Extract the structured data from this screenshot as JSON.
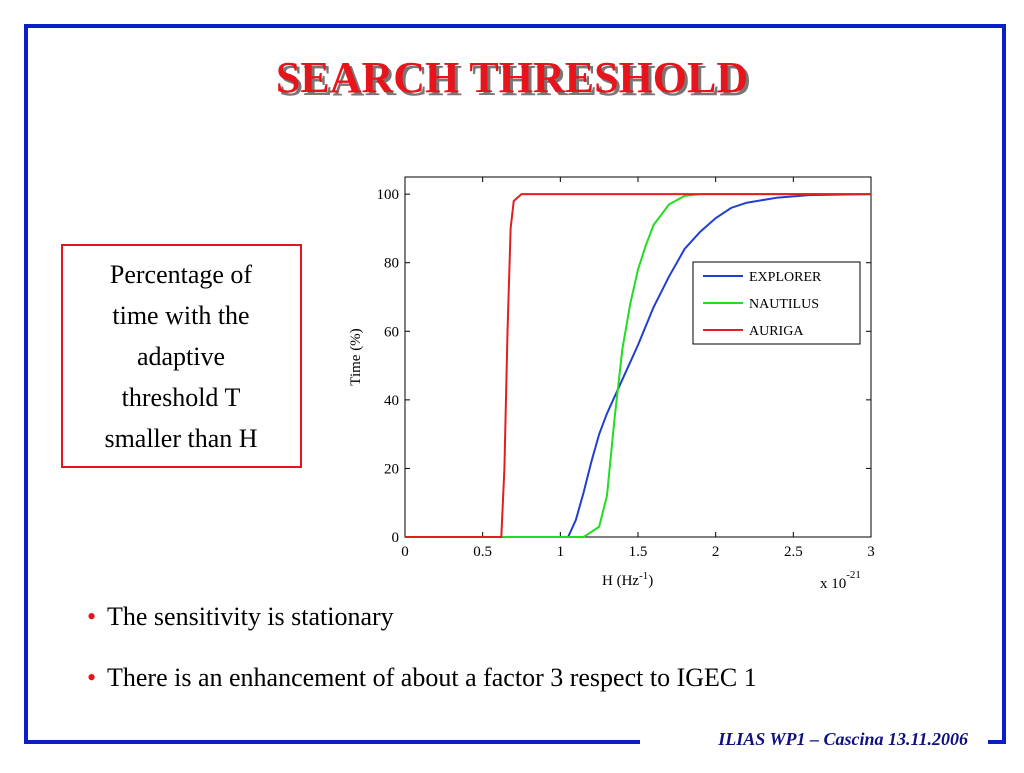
{
  "slide": {
    "title": "SEARCH THRESHOLD",
    "note": [
      "Percentage of",
      "time with the",
      "adaptive",
      "threshold T",
      "smaller than H"
    ],
    "bullets": [
      "The sensitivity is stationary",
      "There is an enhancement of about a factor 3 respect to IGEC 1"
    ],
    "footer": "ILIAS WP1 – Cascina 13.11.2006"
  },
  "chart_data": {
    "type": "line",
    "xlabel": [
      "H (Hz",
      "-1",
      ")"
    ],
    "x_multiplier": [
      "x 10",
      "-21"
    ],
    "ylabel": "Time (%)",
    "xlim": [
      0,
      3
    ],
    "xticks": [
      0,
      0.5,
      1,
      1.5,
      2,
      2.5,
      3
    ],
    "ylim": [
      0,
      105
    ],
    "yticks": [
      0,
      20,
      40,
      60,
      80,
      100
    ],
    "legend_loc": "upper right",
    "series": [
      {
        "name": "EXPLORER",
        "color": "#1f3fd0",
        "x": [
          0,
          1.05,
          1.1,
          1.15,
          1.2,
          1.25,
          1.3,
          1.4,
          1.5,
          1.6,
          1.7,
          1.8,
          1.9,
          2.0,
          2.1,
          2.2,
          2.4,
          2.6,
          3
        ],
        "values": [
          0,
          0,
          5,
          13,
          22,
          30,
          36,
          46,
          56,
          67,
          76,
          84,
          89,
          93,
          96,
          97.5,
          99,
          99.7,
          100
        ]
      },
      {
        "name": "NAUTILUS",
        "color": "#22dd22",
        "x": [
          0,
          1.15,
          1.25,
          1.3,
          1.35,
          1.4,
          1.45,
          1.5,
          1.55,
          1.6,
          1.7,
          1.8,
          1.9,
          3
        ],
        "values": [
          0,
          0,
          3,
          12,
          35,
          55,
          68,
          78,
          85,
          91,
          97,
          99.5,
          100,
          100
        ]
      },
      {
        "name": "AURIGA",
        "color": "#e02020",
        "x": [
          0,
          0.62,
          0.64,
          0.66,
          0.68,
          0.7,
          0.75,
          3
        ],
        "values": [
          0,
          0,
          20,
          60,
          90,
          98,
          100,
          100
        ]
      }
    ]
  }
}
